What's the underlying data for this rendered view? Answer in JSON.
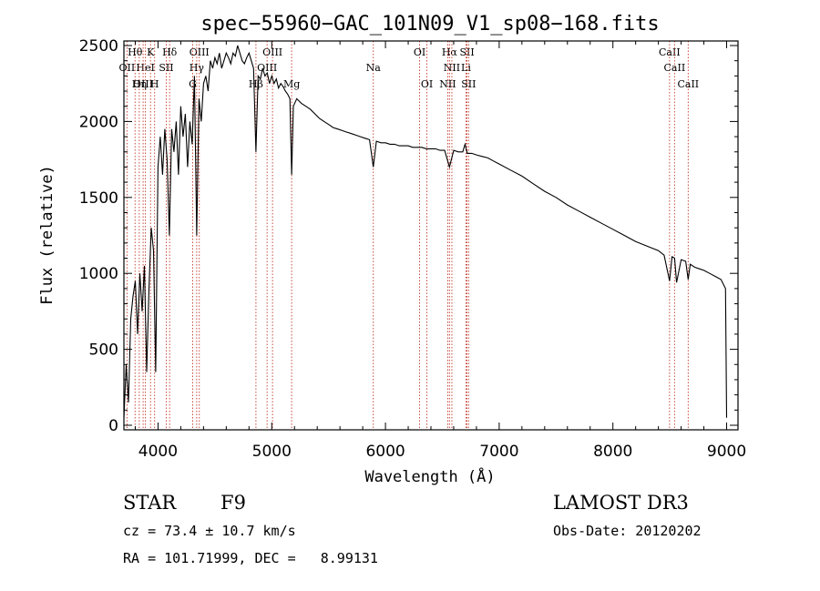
{
  "chart_data": {
    "type": "line",
    "title": "spec−55960−GAC_101N09_V1_sp08−168.fits",
    "xlabel": "Wavelength (Å)",
    "ylabel": "Flux (relative)",
    "xlim": [
      3700,
      9100
    ],
    "ylim": [
      -30,
      2530
    ],
    "x_ticks": [
      4000,
      5000,
      6000,
      7000,
      8000,
      9000
    ],
    "y_ticks": [
      0,
      500,
      1000,
      1500,
      2000,
      2500
    ],
    "x_tick_labels": [
      "4000",
      "5000",
      "6000",
      "7000",
      "8000",
      "9000"
    ],
    "y_tick_labels": [
      "0",
      "500",
      "1000",
      "1500",
      "2000",
      "2500"
    ],
    "series": [
      {
        "name": "flux",
        "x": [
          3700,
          3720,
          3740,
          3760,
          3780,
          3800,
          3820,
          3840,
          3860,
          3880,
          3900,
          3920,
          3940,
          3960,
          3980,
          4000,
          4020,
          4040,
          4060,
          4080,
          4100,
          4120,
          4140,
          4160,
          4180,
          4200,
          4220,
          4240,
          4260,
          4280,
          4300,
          4320,
          4340,
          4360,
          4380,
          4400,
          4420,
          4440,
          4460,
          4480,
          4500,
          4520,
          4540,
          4560,
          4580,
          4600,
          4620,
          4640,
          4660,
          4680,
          4700,
          4720,
          4740,
          4760,
          4780,
          4800,
          4820,
          4840,
          4861,
          4880,
          4900,
          4920,
          4940,
          4960,
          4980,
          5000,
          5020,
          5040,
          5060,
          5080,
          5100,
          5120,
          5140,
          5160,
          5175,
          5190,
          5220,
          5260,
          5300,
          5340,
          5380,
          5420,
          5460,
          5500,
          5540,
          5580,
          5620,
          5660,
          5700,
          5740,
          5780,
          5820,
          5860,
          5893,
          5920,
          5960,
          6000,
          6040,
          6080,
          6120,
          6160,
          6200,
          6240,
          6280,
          6320,
          6360,
          6400,
          6440,
          6480,
          6520,
          6563,
          6600,
          6640,
          6680,
          6700,
          6720,
          6760,
          6800,
          6850,
          6900,
          6950,
          7000,
          7100,
          7200,
          7300,
          7400,
          7500,
          7600,
          7700,
          7800,
          7900,
          8000,
          8100,
          8200,
          8300,
          8400,
          8450,
          8498,
          8520,
          8542,
          8560,
          8600,
          8640,
          8662,
          8680,
          8720,
          8760,
          8800,
          8850,
          8900,
          8950,
          8990,
          9000
        ],
        "values": [
          50,
          400,
          150,
          700,
          850,
          950,
          600,
          1000,
          750,
          1050,
          350,
          900,
          1300,
          1150,
          350,
          1700,
          1900,
          1650,
          1950,
          1750,
          1250,
          1950,
          1800,
          2000,
          1650,
          2100,
          1900,
          2050,
          1700,
          2000,
          1850,
          2300,
          1250,
          2150,
          2000,
          2250,
          2300,
          2200,
          2400,
          2350,
          2420,
          2380,
          2450,
          2350,
          2400,
          2450,
          2420,
          2380,
          2450,
          2430,
          2500,
          2450,
          2400,
          2380,
          2420,
          2450,
          2400,
          2350,
          1800,
          2300,
          2280,
          2350,
          2300,
          2320,
          2250,
          2300,
          2250,
          2280,
          2220,
          2250,
          2230,
          2200,
          2180,
          2150,
          1650,
          2100,
          2150,
          2120,
          2100,
          2080,
          2050,
          2020,
          2000,
          1980,
          1960,
          1950,
          1940,
          1930,
          1920,
          1910,
          1900,
          1890,
          1880,
          1700,
          1870,
          1860,
          1860,
          1850,
          1850,
          1840,
          1840,
          1840,
          1830,
          1830,
          1830,
          1820,
          1820,
          1820,
          1810,
          1810,
          1700,
          1810,
          1800,
          1800,
          1850,
          1790,
          1790,
          1780,
          1770,
          1760,
          1740,
          1720,
          1680,
          1640,
          1590,
          1540,
          1500,
          1450,
          1410,
          1370,
          1330,
          1290,
          1250,
          1210,
          1180,
          1150,
          1120,
          950,
          1110,
          1100,
          940,
          1090,
          1080,
          960,
          1060,
          1040,
          1030,
          1020,
          1000,
          980,
          960,
          900,
          50
        ]
      }
    ],
    "line_markers": [
      {
        "label": "Hθ",
        "x": 3798,
        "row": 0
      },
      {
        "label": "K",
        "x": 3934,
        "row": 0
      },
      {
        "label": "Hδ",
        "x": 4102,
        "row": 0
      },
      {
        "label": "OIII",
        "x": 4363,
        "row": 0
      },
      {
        "label": "OIII",
        "x": 5007,
        "row": 0
      },
      {
        "label": "OI",
        "x": 6300,
        "row": 0
      },
      {
        "label": "Hα",
        "x": 6563,
        "row": 0
      },
      {
        "label": "SII",
        "x": 6717,
        "row": 0
      },
      {
        "label": "CaII",
        "x": 8498,
        "row": 0
      },
      {
        "label": "OII",
        "x": 3727,
        "row": 1
      },
      {
        "label": "HeI",
        "x": 3889,
        "row": 1
      },
      {
        "label": "SII",
        "x": 4072,
        "row": 1
      },
      {
        "label": "Hγ",
        "x": 4340,
        "row": 1
      },
      {
        "label": "OIII",
        "x": 4959,
        "row": 1
      },
      {
        "label": "Na",
        "x": 5893,
        "row": 1
      },
      {
        "label": "NII",
        "x": 6584,
        "row": 1
      },
      {
        "label": "Li",
        "x": 6708,
        "row": 1
      },
      {
        "label": "CaII",
        "x": 8542,
        "row": 1
      },
      {
        "label": "OIII",
        "x": 3869,
        "row": 2
      },
      {
        "label": "Hη",
        "x": 3835,
        "row": 2
      },
      {
        "label": "H",
        "x": 3970,
        "row": 2
      },
      {
        "label": "G",
        "x": 4305,
        "row": 2
      },
      {
        "label": "Hβ",
        "x": 4861,
        "row": 2
      },
      {
        "label": "Mg",
        "x": 5175,
        "row": 2
      },
      {
        "label": "OI",
        "x": 6364,
        "row": 2
      },
      {
        "label": "NII",
        "x": 6548,
        "row": 2
      },
      {
        "label": "SII",
        "x": 6731,
        "row": 2
      },
      {
        "label": "CaII",
        "x": 8662,
        "row": 2
      }
    ]
  },
  "info": {
    "class": "STAR",
    "subclass": "F9",
    "survey": "LAMOST DR3",
    "cz": "cz = 73.4 ± 10.7 km/s",
    "obs_date": "Obs-Date: 20120202",
    "coords": "RA = 101.71999, DEC =   8.99131"
  }
}
